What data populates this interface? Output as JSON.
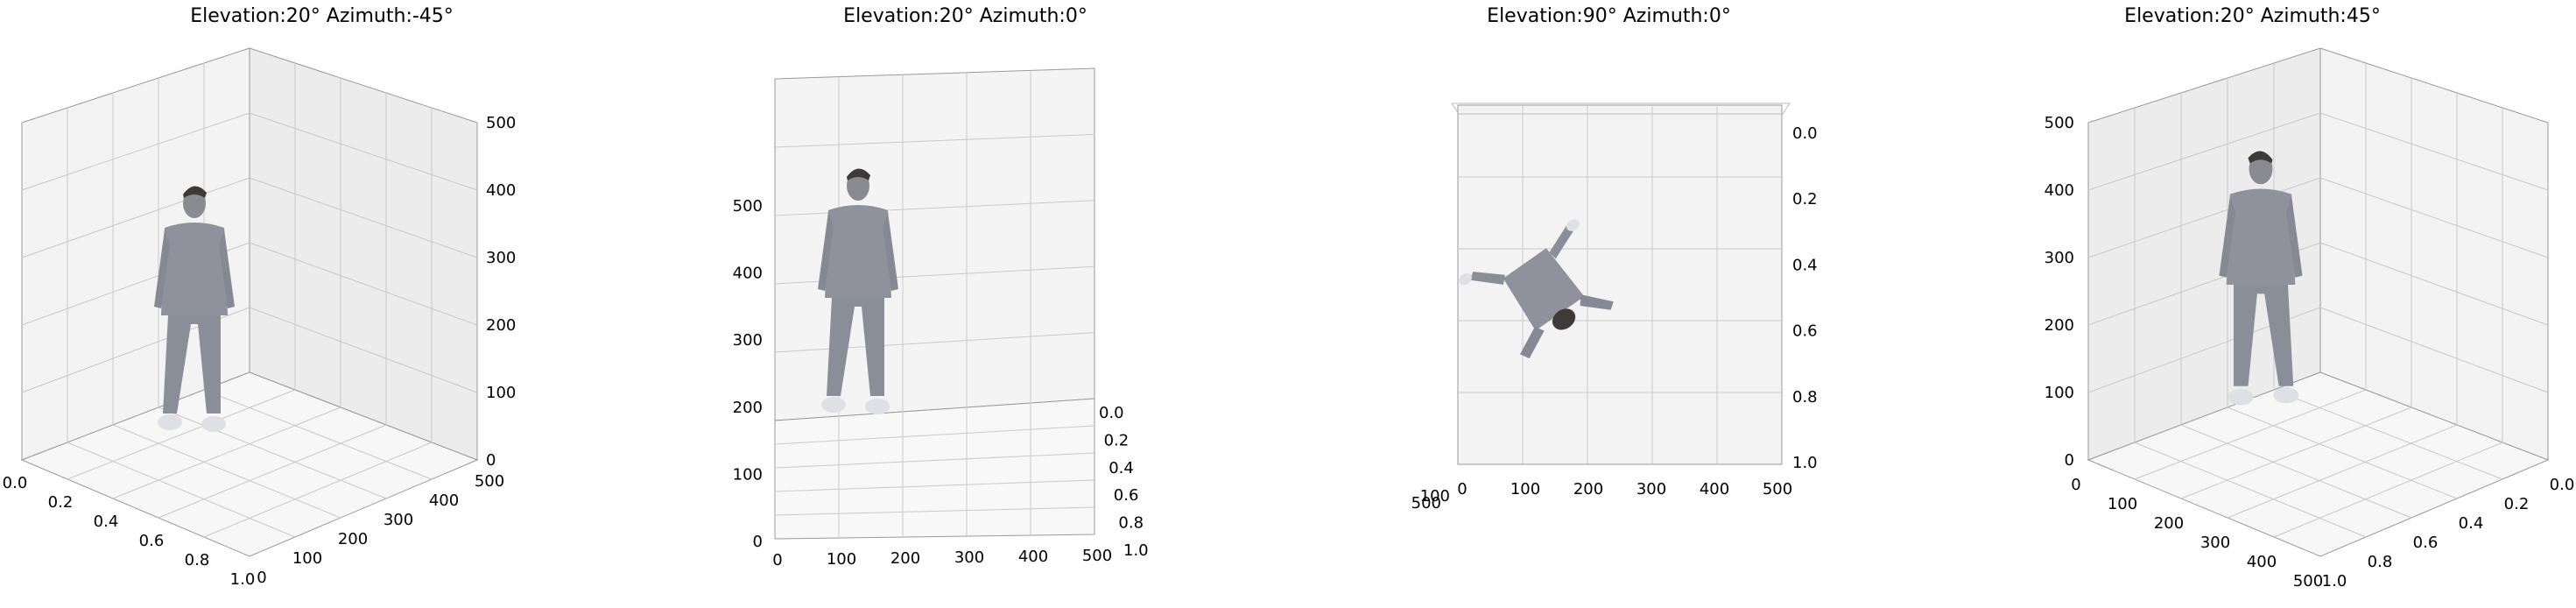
{
  "chart_data": [
    {
      "type": "3d-voxel",
      "title": "Elevation:20° Azimuth:-45°",
      "view": {
        "elevation": 20,
        "azimuth": -45
      },
      "x_ticks": [
        "0.0",
        "0.2",
        "0.4",
        "0.6",
        "0.8",
        "1.0"
      ],
      "y_ticks": [
        "0",
        "100",
        "200",
        "300",
        "400",
        "500"
      ],
      "z_ticks": [
        "0",
        "100",
        "200",
        "300",
        "400",
        "500"
      ],
      "xlim": [
        0,
        1
      ],
      "ylim": [
        0,
        500
      ],
      "zlim": [
        0,
        500
      ],
      "grid": true
    },
    {
      "type": "3d-voxel",
      "title": "Elevation:20° Azimuth:0°",
      "view": {
        "elevation": 20,
        "azimuth": 0
      },
      "x_ticks": [
        "0",
        "100",
        "200",
        "300",
        "400",
        "500"
      ],
      "y_ticks": [
        "0.0",
        "0.2",
        "0.4",
        "0.6",
        "0.8",
        "1.0"
      ],
      "z_ticks": [
        "0",
        "100",
        "200",
        "300",
        "400",
        "500"
      ],
      "xlim": [
        0,
        500
      ],
      "ylim": [
        0,
        1
      ],
      "zlim": [
        0,
        500
      ],
      "grid": true
    },
    {
      "type": "3d-voxel",
      "title": "Elevation:90° Azimuth:0°",
      "view": {
        "elevation": 90,
        "azimuth": 0
      },
      "x_ticks": [
        "0",
        "100",
        "200",
        "300",
        "400",
        "500"
      ],
      "y_ticks": [
        "0.0",
        "0.2",
        "0.4",
        "0.6",
        "0.8",
        "1.0"
      ],
      "z_ticks": [
        "500",
        "100"
      ],
      "xlim": [
        0,
        500
      ],
      "ylim": [
        0,
        1
      ],
      "grid": true
    },
    {
      "type": "3d-voxel",
      "title": "Elevation:20° Azimuth:45°",
      "view": {
        "elevation": 20,
        "azimuth": 45
      },
      "x_ticks": [
        "0.0",
        "0.2",
        "0.4",
        "0.6",
        "0.8",
        "1.0"
      ],
      "y_ticks": [
        "0",
        "100",
        "200",
        "300",
        "400",
        "500"
      ],
      "z_ticks": [
        "0",
        "100",
        "200",
        "300",
        "400",
        "500"
      ],
      "xlim": [
        0,
        1
      ],
      "ylim": [
        0,
        500
      ],
      "zlim": [
        0,
        500
      ],
      "grid": true
    }
  ]
}
